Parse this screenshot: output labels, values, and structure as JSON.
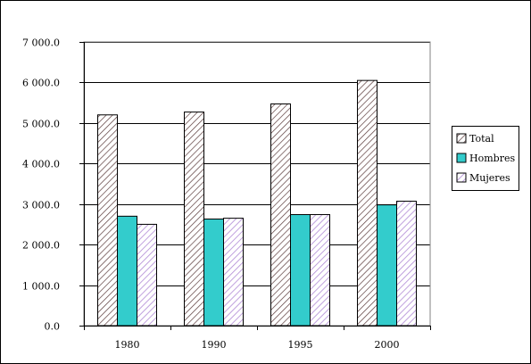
{
  "chart_data": {
    "type": "bar",
    "categories": [
      "1980",
      "1990",
      "1995",
      "2000"
    ],
    "series": [
      {
        "name": "Total",
        "values": [
          5200,
          5270,
          5470,
          6050
        ],
        "color": "#ffffff",
        "pattern": "hatch-dense-dark"
      },
      {
        "name": "Hombres",
        "values": [
          2700,
          2630,
          2740,
          2980
        ],
        "color": "#33cccc",
        "pattern": "solid"
      },
      {
        "name": "Mujeres",
        "values": [
          2500,
          2650,
          2740,
          3070
        ],
        "color": "#ffffff",
        "pattern": "hatch-light-purple"
      }
    ],
    "ylim": [
      0,
      7000
    ],
    "yticks": [
      0,
      1000,
      2000,
      3000,
      4000,
      5000,
      6000,
      7000
    ],
    "ytick_labels": [
      "0.0",
      "1 000.0",
      "2 000.0",
      "3 000.0",
      "4 000.0",
      "5 000.0",
      "6 000.0",
      "7 000.0"
    ],
    "grid": true,
    "legend_position": "right",
    "title": "",
    "xlabel": "",
    "ylabel": ""
  }
}
